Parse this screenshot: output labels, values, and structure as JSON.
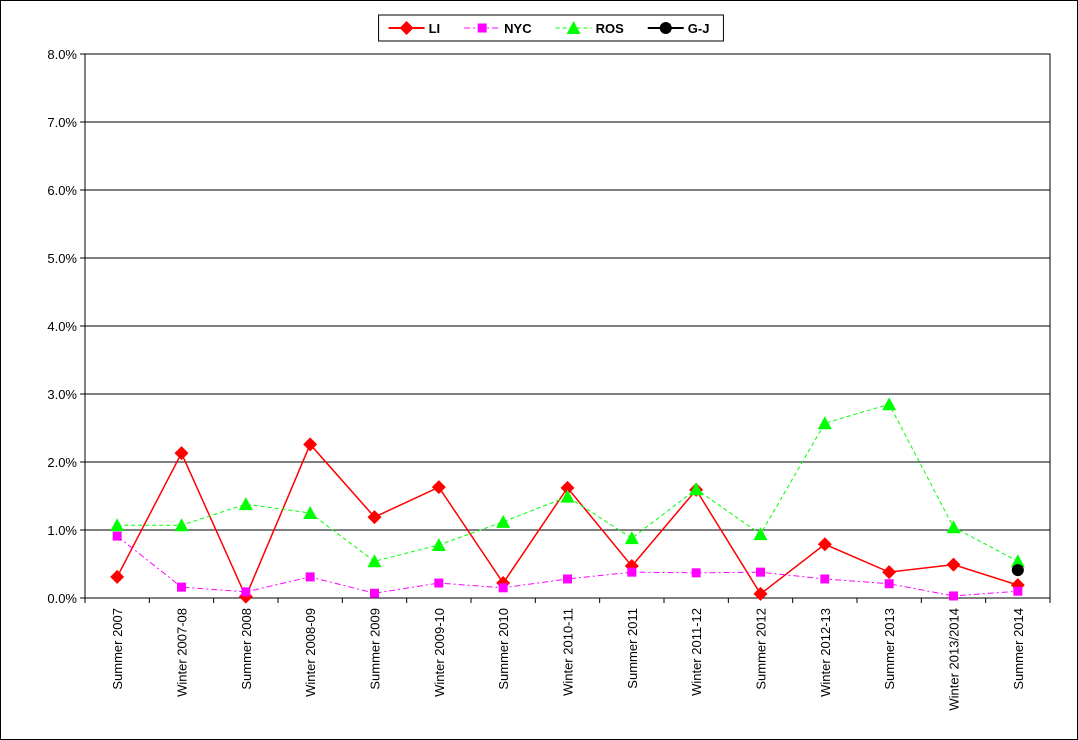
{
  "chart_data": {
    "type": "line",
    "categories": [
      "Summer 2007",
      "Winter 2007-08",
      "Summer 2008",
      "Winter 2008-09",
      "Summer 2009",
      "Winter 2009-10",
      "Summer 2010",
      "Winter 2010-11",
      "Summer 2011",
      "Winter 2011-12",
      "Summer 2012",
      "Winter 2012-13",
      "Summer 2013",
      "Winter 2013/2014",
      "Summer 2014"
    ],
    "series": [
      {
        "name": "LI",
        "color": "#ff0000",
        "marker": "diamond",
        "dash": "solid",
        "values": [
          0.31,
          2.13,
          0.02,
          2.26,
          1.19,
          1.63,
          0.22,
          1.62,
          0.47,
          1.59,
          0.06,
          0.79,
          0.38,
          0.49,
          0.19
        ]
      },
      {
        "name": "NYC",
        "color": "#ff00ff",
        "marker": "square",
        "dash": "dashdot",
        "values": [
          0.91,
          0.16,
          0.09,
          0.31,
          0.07,
          0.22,
          0.15,
          0.28,
          0.38,
          0.37,
          0.38,
          0.28,
          0.21,
          0.03,
          0.1
        ]
      },
      {
        "name": "ROS",
        "color": "#00ff00",
        "marker": "triangle",
        "dash": "dashed",
        "values": [
          1.07,
          1.07,
          1.38,
          1.25,
          0.54,
          0.78,
          1.12,
          1.49,
          0.88,
          1.6,
          0.94,
          2.57,
          2.85,
          1.04,
          0.54
        ]
      },
      {
        "name": "G-J",
        "color": "#000000",
        "marker": "circle",
        "dash": "solid",
        "values": [
          null,
          null,
          null,
          null,
          null,
          null,
          null,
          null,
          null,
          null,
          null,
          null,
          null,
          null,
          0.41
        ]
      }
    ],
    "ylim": [
      0,
      8
    ],
    "yticks": [
      {
        "value": 0,
        "label": "0.0%"
      },
      {
        "value": 1,
        "label": "1.0%"
      },
      {
        "value": 2,
        "label": "2.0%"
      },
      {
        "value": 3,
        "label": "3.0%"
      },
      {
        "value": 4,
        "label": "4.0%"
      },
      {
        "value": 5,
        "label": "5.0%"
      },
      {
        "value": 6,
        "label": "6.0%"
      },
      {
        "value": 7,
        "label": "7.0%"
      },
      {
        "value": 8,
        "label": "8.0%"
      }
    ],
    "grid": true,
    "legend": "top"
  }
}
